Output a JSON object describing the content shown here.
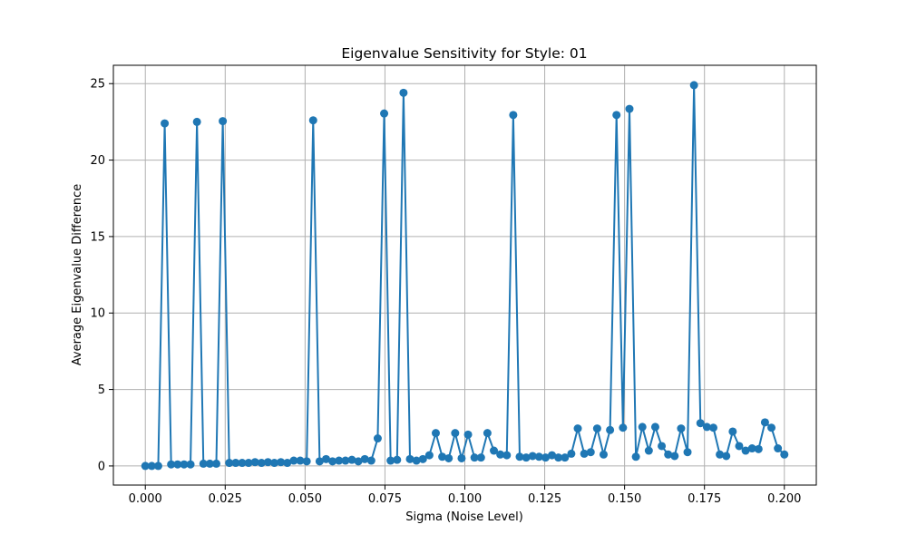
{
  "chart_data": {
    "type": "line",
    "title": "Eigenvalue Sensitivity for Style: 01",
    "xlabel": "Sigma (Noise Level)",
    "ylabel": "Average Eigenvalue Difference",
    "xlim": [
      -0.01,
      0.21
    ],
    "ylim": [
      -1.25,
      26.2
    ],
    "xticks": [
      0.0,
      0.025,
      0.05,
      0.075,
      0.1,
      0.125,
      0.15,
      0.175,
      0.2
    ],
    "xtick_labels": [
      "0.000",
      "0.025",
      "0.050",
      "0.075",
      "0.100",
      "0.125",
      "0.150",
      "0.175",
      "0.200"
    ],
    "yticks": [
      0,
      5,
      10,
      15,
      20,
      25
    ],
    "ytick_labels": [
      "0",
      "5",
      "10",
      "15",
      "20",
      "25"
    ],
    "grid": true,
    "marker": "circle",
    "line_color": "#1f77b4",
    "series": [
      {
        "x": [
          0.0,
          0.00202,
          0.00404,
          0.00606,
          0.00808,
          0.0101,
          0.01212,
          0.01414,
          0.01616,
          0.01818,
          0.0202,
          0.02222,
          0.02424,
          0.02626,
          0.02828,
          0.0303,
          0.03232,
          0.03434,
          0.03636,
          0.03838,
          0.0404,
          0.04242,
          0.04444,
          0.04646,
          0.04848,
          0.05051,
          0.05253,
          0.05455,
          0.05657,
          0.05859,
          0.06061,
          0.06263,
          0.06465,
          0.06667,
          0.06869,
          0.07071,
          0.07273,
          0.07475,
          0.07677,
          0.07879,
          0.08081,
          0.08283,
          0.08485,
          0.08687,
          0.08889,
          0.09091,
          0.09293,
          0.09495,
          0.09697,
          0.09899,
          0.10101,
          0.10303,
          0.10505,
          0.10707,
          0.10909,
          0.11111,
          0.11313,
          0.11515,
          0.11717,
          0.11919,
          0.12121,
          0.12323,
          0.12525,
          0.12727,
          0.12929,
          0.13131,
          0.13333,
          0.13535,
          0.13737,
          0.13939,
          0.14141,
          0.14343,
          0.14545,
          0.14747,
          0.14949,
          0.15152,
          0.15354,
          0.15556,
          0.15758,
          0.1596,
          0.16162,
          0.16364,
          0.16566,
          0.16768,
          0.1697,
          0.17172,
          0.17374,
          0.17576,
          0.17778,
          0.1798,
          0.18182,
          0.18384,
          0.18586,
          0.18788,
          0.1899,
          0.19192,
          0.19394,
          0.19596,
          0.19798,
          0.2
        ],
        "values": [
          0.0,
          0.0,
          0.0,
          22.4,
          0.1,
          0.1,
          0.1,
          0.1,
          22.5,
          0.15,
          0.15,
          0.15,
          22.55,
          0.2,
          0.2,
          0.2,
          0.2,
          0.25,
          0.2,
          0.25,
          0.2,
          0.25,
          0.2,
          0.35,
          0.35,
          0.3,
          22.6,
          0.3,
          0.45,
          0.3,
          0.35,
          0.35,
          0.4,
          0.3,
          0.45,
          0.35,
          1.8,
          23.05,
          0.35,
          0.4,
          24.4,
          0.45,
          0.35,
          0.45,
          0.7,
          2.15,
          0.6,
          0.5,
          2.15,
          0.5,
          2.05,
          0.55,
          0.55,
          2.15,
          1.0,
          0.75,
          0.7,
          22.95,
          0.6,
          0.55,
          0.65,
          0.6,
          0.55,
          0.7,
          0.55,
          0.55,
          0.8,
          2.45,
          0.8,
          0.9,
          2.45,
          0.75,
          2.35,
          22.95,
          2.5,
          23.35,
          0.6,
          2.55,
          1.0,
          2.55,
          1.3,
          0.75,
          0.65,
          2.45,
          0.9,
          24.9,
          2.8,
          2.55,
          2.5,
          0.75,
          0.65,
          2.25,
          1.3,
          1.0,
          1.15,
          1.1,
          2.85,
          2.5,
          1.15,
          0.75
        ]
      }
    ]
  }
}
